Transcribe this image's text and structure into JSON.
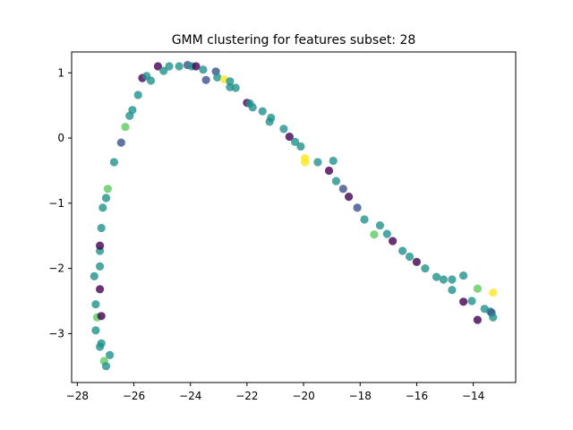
{
  "chart_data": {
    "type": "scatter",
    "title": "GMM clustering for features subset: 28",
    "xlabel": "",
    "ylabel": "",
    "xlim": [
      -28.2,
      -12.5
    ],
    "ylim": [
      -3.75,
      1.32
    ],
    "xticks": [
      -28,
      -26,
      -24,
      -22,
      -20,
      -18,
      -16,
      -14
    ],
    "yticks": [
      -3,
      -2,
      -1,
      0,
      1
    ],
    "grid": false,
    "legend": "none",
    "cluster_colors": {
      "0": "#440154",
      "1": "#3b528b",
      "2": "#21918c",
      "3": "#5ec962",
      "4": "#fde725"
    },
    "points": [
      {
        "x": -27.4,
        "y": -2.12,
        "c": 2
      },
      {
        "x": -27.35,
        "y": -2.55,
        "c": 2
      },
      {
        "x": -27.35,
        "y": -2.95,
        "c": 2
      },
      {
        "x": -27.3,
        "y": -2.75,
        "c": 3
      },
      {
        "x": -27.2,
        "y": -3.2,
        "c": 2
      },
      {
        "x": -27.2,
        "y": -2.32,
        "c": 0
      },
      {
        "x": -27.2,
        "y": -1.97,
        "c": 2
      },
      {
        "x": -27.2,
        "y": -1.73,
        "c": 2
      },
      {
        "x": -27.2,
        "y": -1.65,
        "c": 0
      },
      {
        "x": -27.15,
        "y": -3.15,
        "c": 2
      },
      {
        "x": -27.15,
        "y": -2.73,
        "c": 0
      },
      {
        "x": -27.15,
        "y": -1.38,
        "c": 2
      },
      {
        "x": -27.1,
        "y": -1.07,
        "c": 2
      },
      {
        "x": -27.05,
        "y": -3.42,
        "c": 3
      },
      {
        "x": -26.98,
        "y": -3.5,
        "c": 2
      },
      {
        "x": -26.98,
        "y": -0.92,
        "c": 2
      },
      {
        "x": -26.92,
        "y": -0.78,
        "c": 3
      },
      {
        "x": -26.85,
        "y": -3.33,
        "c": 2
      },
      {
        "x": -26.7,
        "y": -0.37,
        "c": 2
      },
      {
        "x": -26.45,
        "y": -0.07,
        "c": 1
      },
      {
        "x": -26.3,
        "y": 0.17,
        "c": 3
      },
      {
        "x": -26.15,
        "y": 0.34,
        "c": 2
      },
      {
        "x": -26.05,
        "y": 0.43,
        "c": 2
      },
      {
        "x": -25.85,
        "y": 0.66,
        "c": 2
      },
      {
        "x": -25.7,
        "y": 0.92,
        "c": 0
      },
      {
        "x": -25.55,
        "y": 0.95,
        "c": 2
      },
      {
        "x": -25.4,
        "y": 0.88,
        "c": 2
      },
      {
        "x": -25.15,
        "y": 1.1,
        "c": 0
      },
      {
        "x": -24.95,
        "y": 1.03,
        "c": 2
      },
      {
        "x": -24.75,
        "y": 1.1,
        "c": 2
      },
      {
        "x": -24.4,
        "y": 1.1,
        "c": 2
      },
      {
        "x": -24.1,
        "y": 1.12,
        "c": 1
      },
      {
        "x": -23.95,
        "y": 1.1,
        "c": 2
      },
      {
        "x": -23.8,
        "y": 1.1,
        "c": 0
      },
      {
        "x": -23.55,
        "y": 1.05,
        "c": 2
      },
      {
        "x": -23.45,
        "y": 0.89,
        "c": 1
      },
      {
        "x": -23.1,
        "y": 1.02,
        "c": 1
      },
      {
        "x": -23.05,
        "y": 0.93,
        "c": 2
      },
      {
        "x": -22.8,
        "y": 0.9,
        "c": 4
      },
      {
        "x": -22.6,
        "y": 0.87,
        "c": 2
      },
      {
        "x": -22.6,
        "y": 0.78,
        "c": 2
      },
      {
        "x": -22.4,
        "y": 0.77,
        "c": 2
      },
      {
        "x": -22.0,
        "y": 0.54,
        "c": 0
      },
      {
        "x": -21.9,
        "y": 0.53,
        "c": 2
      },
      {
        "x": -21.8,
        "y": 0.47,
        "c": 2
      },
      {
        "x": -21.45,
        "y": 0.41,
        "c": 2
      },
      {
        "x": -21.2,
        "y": 0.25,
        "c": 2
      },
      {
        "x": -21.15,
        "y": 0.31,
        "c": 2
      },
      {
        "x": -20.7,
        "y": 0.14,
        "c": 2
      },
      {
        "x": -20.5,
        "y": 0.02,
        "c": 0
      },
      {
        "x": -20.3,
        "y": -0.06,
        "c": 2
      },
      {
        "x": -20.1,
        "y": -0.13,
        "c": 2
      },
      {
        "x": -19.95,
        "y": -0.31,
        "c": 4
      },
      {
        "x": -19.95,
        "y": -0.37,
        "c": 4
      },
      {
        "x": -19.5,
        "y": -0.37,
        "c": 2
      },
      {
        "x": -19.1,
        "y": -0.5,
        "c": 0
      },
      {
        "x": -18.95,
        "y": -0.35,
        "c": 2
      },
      {
        "x": -18.85,
        "y": -0.66,
        "c": 2
      },
      {
        "x": -18.6,
        "y": -0.78,
        "c": 1
      },
      {
        "x": -18.4,
        "y": -0.9,
        "c": 0
      },
      {
        "x": -18.1,
        "y": -1.07,
        "c": 1
      },
      {
        "x": -17.85,
        "y": -1.25,
        "c": 2
      },
      {
        "x": -17.5,
        "y": -1.48,
        "c": 3
      },
      {
        "x": -17.3,
        "y": -1.34,
        "c": 2
      },
      {
        "x": -17.05,
        "y": -1.47,
        "c": 2
      },
      {
        "x": -16.85,
        "y": -1.58,
        "c": 0
      },
      {
        "x": -16.5,
        "y": -1.73,
        "c": 2
      },
      {
        "x": -16.25,
        "y": -1.82,
        "c": 2
      },
      {
        "x": -16.0,
        "y": -1.9,
        "c": 0
      },
      {
        "x": -15.7,
        "y": -2.0,
        "c": 2
      },
      {
        "x": -15.3,
        "y": -2.13,
        "c": 2
      },
      {
        "x": -15.05,
        "y": -2.17,
        "c": 2
      },
      {
        "x": -14.75,
        "y": -2.17,
        "c": 2
      },
      {
        "x": -14.75,
        "y": -2.33,
        "c": 2
      },
      {
        "x": -14.35,
        "y": -2.11,
        "c": 2
      },
      {
        "x": -14.35,
        "y": -2.51,
        "c": 0
      },
      {
        "x": -14.05,
        "y": -2.5,
        "c": 2
      },
      {
        "x": -13.85,
        "y": -2.31,
        "c": 3
      },
      {
        "x": -13.85,
        "y": -2.79,
        "c": 0
      },
      {
        "x": -13.6,
        "y": -2.62,
        "c": 2
      },
      {
        "x": -13.4,
        "y": -2.66,
        "c": 2
      },
      {
        "x": -13.35,
        "y": -2.68,
        "c": 1
      },
      {
        "x": -13.3,
        "y": -2.37,
        "c": 4
      },
      {
        "x": -13.3,
        "y": -2.75,
        "c": 2
      }
    ]
  }
}
